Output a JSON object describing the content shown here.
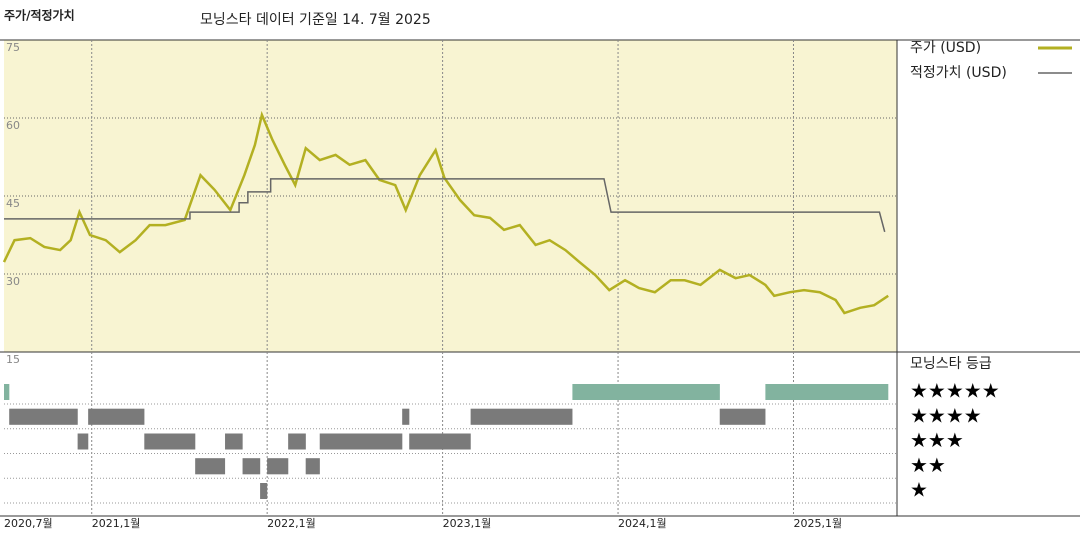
{
  "chart_data": {
    "type": "line",
    "title": "주가/적정가치",
    "subtitle": "모닝스타 데이터 기준일 14. 7월 2025",
    "xlim": [
      2020.5,
      2025.59
    ],
    "xticks": [
      {
        "value": 2020.5,
        "label": "2020,7월"
      },
      {
        "value": 2021.0,
        "label": "2021,1월"
      },
      {
        "value": 2022.0,
        "label": "2022,1월"
      },
      {
        "value": 2023.0,
        "label": "2023,1월"
      },
      {
        "value": 2024.0,
        "label": "2024,1월"
      },
      {
        "value": 2025.0,
        "label": "2025,1월"
      }
    ],
    "ylim": [
      15,
      75
    ],
    "yticks": [
      15,
      30,
      45,
      60,
      75
    ],
    "grid": true,
    "background": "#f8f4d2",
    "series": [
      {
        "name": "주가 (USD)",
        "color": "#b3b022",
        "x": [
          2020.5,
          2020.56,
          2020.65,
          2020.73,
          2020.82,
          2020.88,
          2020.93,
          2020.99,
          2021.08,
          2021.16,
          2021.25,
          2021.33,
          2021.42,
          2021.53,
          2021.62,
          2021.7,
          2021.79,
          2021.87,
          2021.93,
          2021.97,
          2022.03,
          2022.1,
          2022.16,
          2022.22,
          2022.3,
          2022.39,
          2022.47,
          2022.56,
          2022.64,
          2022.73,
          2022.79,
          2022.87,
          2022.96,
          2023.01,
          2023.1,
          2023.18,
          2023.27,
          2023.35,
          2023.44,
          2023.53,
          2023.61,
          2023.7,
          2023.78,
          2023.87,
          2023.95,
          2024.04,
          2024.12,
          2024.21,
          2024.3,
          2024.38,
          2024.47,
          2024.58,
          2024.67,
          2024.75,
          2024.84,
          2024.89,
          2024.98,
          2025.06,
          2025.15,
          2025.24,
          2025.29,
          2025.38,
          2025.46,
          2025.54
        ],
        "values": [
          32.3,
          36.5,
          36.9,
          35.2,
          34.6,
          36.5,
          41.9,
          37.5,
          36.5,
          34.2,
          36.5,
          39.4,
          39.4,
          40.4,
          49.0,
          46.2,
          42.3,
          49.0,
          54.8,
          60.6,
          55.8,
          51.0,
          47.1,
          54.2,
          51.9,
          52.9,
          51.0,
          51.9,
          48.1,
          47.1,
          42.3,
          49.0,
          53.8,
          48.5,
          44.2,
          41.3,
          40.8,
          38.5,
          39.4,
          35.6,
          36.5,
          34.6,
          32.3,
          29.8,
          26.9,
          28.8,
          27.3,
          26.5,
          28.8,
          28.8,
          27.9,
          30.8,
          29.2,
          29.8,
          27.9,
          25.8,
          26.5,
          26.9,
          26.5,
          25.0,
          22.5,
          23.5,
          24.0,
          25.8
        ]
      },
      {
        "name": "적정가치 (USD)",
        "color": "#666666",
        "x": [
          2020.5,
          2021.56,
          2021.56,
          2021.84,
          2021.84,
          2021.89,
          2021.89,
          2022.02,
          2022.02,
          2023.92,
          2023.96,
          2025.49,
          2025.52
        ],
        "values": [
          40.6,
          40.6,
          41.9,
          41.9,
          43.7,
          43.7,
          45.8,
          45.8,
          48.3,
          48.3,
          41.9,
          41.9,
          38.1
        ]
      }
    ],
    "rating_title": "모닝스타 등급",
    "rating_labels": [
      "★★★★★",
      "★★★★",
      "★★★",
      "★★",
      "★"
    ],
    "rating_colors": {
      "5": "#3f8a6c",
      "other": "#333333"
    },
    "ratings": {
      "start": [
        2020.5,
        2020.53,
        2020.92,
        2020.98,
        2021.3,
        2021.59,
        2021.76,
        2021.86,
        2021.96,
        2022.0,
        2022.12,
        2022.22,
        2022.3,
        2022.77,
        2022.81,
        2023.16,
        2023.74,
        2024.58,
        2024.84
      ],
      "end": [
        2020.53,
        2020.92,
        2020.98,
        2021.3,
        2021.59,
        2021.76,
        2021.86,
        2021.96,
        2022.0,
        2022.12,
        2022.22,
        2022.3,
        2022.77,
        2022.81,
        2023.16,
        2023.74,
        2024.58,
        2024.84,
        2025.54
      ],
      "values": [
        5,
        4,
        3,
        4,
        3,
        2,
        3,
        2,
        1,
        2,
        3,
        2,
        3,
        4,
        3,
        4,
        5,
        4,
        5
      ]
    }
  }
}
